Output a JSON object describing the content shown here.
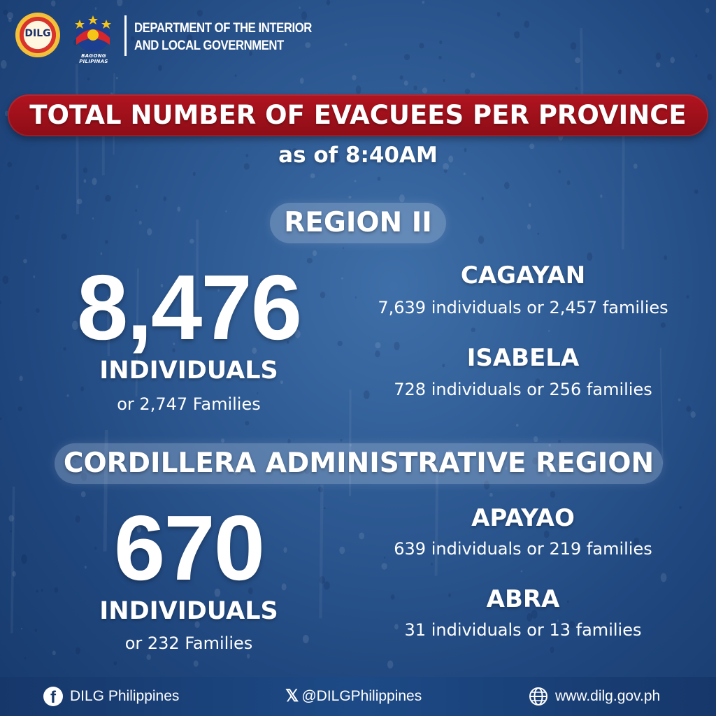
{
  "header": {
    "seal_text": "DILG",
    "bagong_text": "BAGONG PILIPINAS",
    "department_line1": "DEPARTMENT OF THE INTERIOR",
    "department_line2": "AND LOCAL GOVERNMENT"
  },
  "title": "TOTAL NUMBER OF EVACUEES PER PROVINCE",
  "as_of": "as of 8:40AM",
  "regions": [
    {
      "name": "REGION II",
      "total": "8,476",
      "total_label": "INDIVIDUALS",
      "families": "or 2,747 Families",
      "provinces": [
        {
          "name": "CAGAYAN",
          "detail": "7,639 individuals or 2,457 families"
        },
        {
          "name": "ISABELA",
          "detail": "728 individuals or 256 families"
        }
      ]
    },
    {
      "name": "CORDILLERA ADMINISTRATIVE REGION",
      "total": "670",
      "total_label": "INDIVIDUALS",
      "families": "or 232 Families",
      "provinces": [
        {
          "name": "APAYAO",
          "detail": "639 individuals or 219 families"
        },
        {
          "name": "ABRA",
          "detail": "31 individuals or 13 families"
        }
      ]
    }
  ],
  "footer": {
    "facebook": {
      "icon": "facebook-icon",
      "text": "DILG Philippines"
    },
    "x": {
      "icon": "x-icon",
      "text": "@DILGPhilippines"
    },
    "web": {
      "icon": "globe-icon",
      "text": "www.dilg.gov.ph"
    }
  },
  "colors": {
    "background": "#2e5a93",
    "title_pill": "#a3111c",
    "region_pill": "#b8cbe2",
    "footer": "#1a4077"
  }
}
